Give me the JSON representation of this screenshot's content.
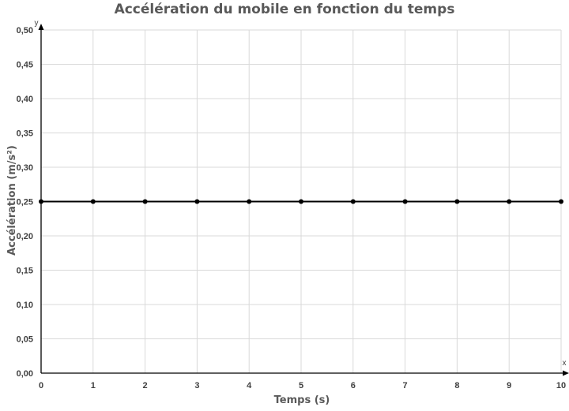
{
  "chart_data": {
    "type": "line",
    "title": "Accélération du mobile en fonction du temps",
    "xlabel": "Temps (s)",
    "ylabel": "Accélération (m/s²)",
    "x_axis_name": "x",
    "y_axis_name": "y",
    "xlim": [
      0,
      10
    ],
    "ylim": [
      0,
      0.5
    ],
    "x_ticks": [
      {
        "value": 0,
        "label": "0"
      },
      {
        "value": 1,
        "label": "1"
      },
      {
        "value": 2,
        "label": "2"
      },
      {
        "value": 3,
        "label": "3"
      },
      {
        "value": 4,
        "label": "4"
      },
      {
        "value": 5,
        "label": "5"
      },
      {
        "value": 6,
        "label": "6"
      },
      {
        "value": 7,
        "label": "7"
      },
      {
        "value": 8,
        "label": "8"
      },
      {
        "value": 9,
        "label": "9"
      },
      {
        "value": 10,
        "label": "10"
      }
    ],
    "y_ticks": [
      {
        "value": 0,
        "label": "0,00"
      },
      {
        "value": 0.05,
        "label": "0,05"
      },
      {
        "value": 0.1,
        "label": "0,10"
      },
      {
        "value": 0.15,
        "label": "0,15"
      },
      {
        "value": 0.2,
        "label": "0,20"
      },
      {
        "value": 0.25,
        "label": "0,25"
      },
      {
        "value": 0.3,
        "label": "0,30"
      },
      {
        "value": 0.35,
        "label": "0,35"
      },
      {
        "value": 0.4,
        "label": "0,40"
      },
      {
        "value": 0.45,
        "label": "0,45"
      },
      {
        "value": 0.5,
        "label": "0,50"
      }
    ],
    "grid": true,
    "legend": "none",
    "series": [
      {
        "x": [
          0,
          1,
          2,
          3,
          4,
          5,
          6,
          7,
          8,
          9,
          10
        ],
        "y": [
          0.25,
          0.25,
          0.25,
          0.25,
          0.25,
          0.25,
          0.25,
          0.25,
          0.25,
          0.25,
          0.25
        ],
        "color": "#000000",
        "markers": true
      }
    ],
    "colors": {
      "grid": "#d9d9d9",
      "axis": "#000000",
      "tick_label": "#404040",
      "label": "#595959"
    }
  }
}
